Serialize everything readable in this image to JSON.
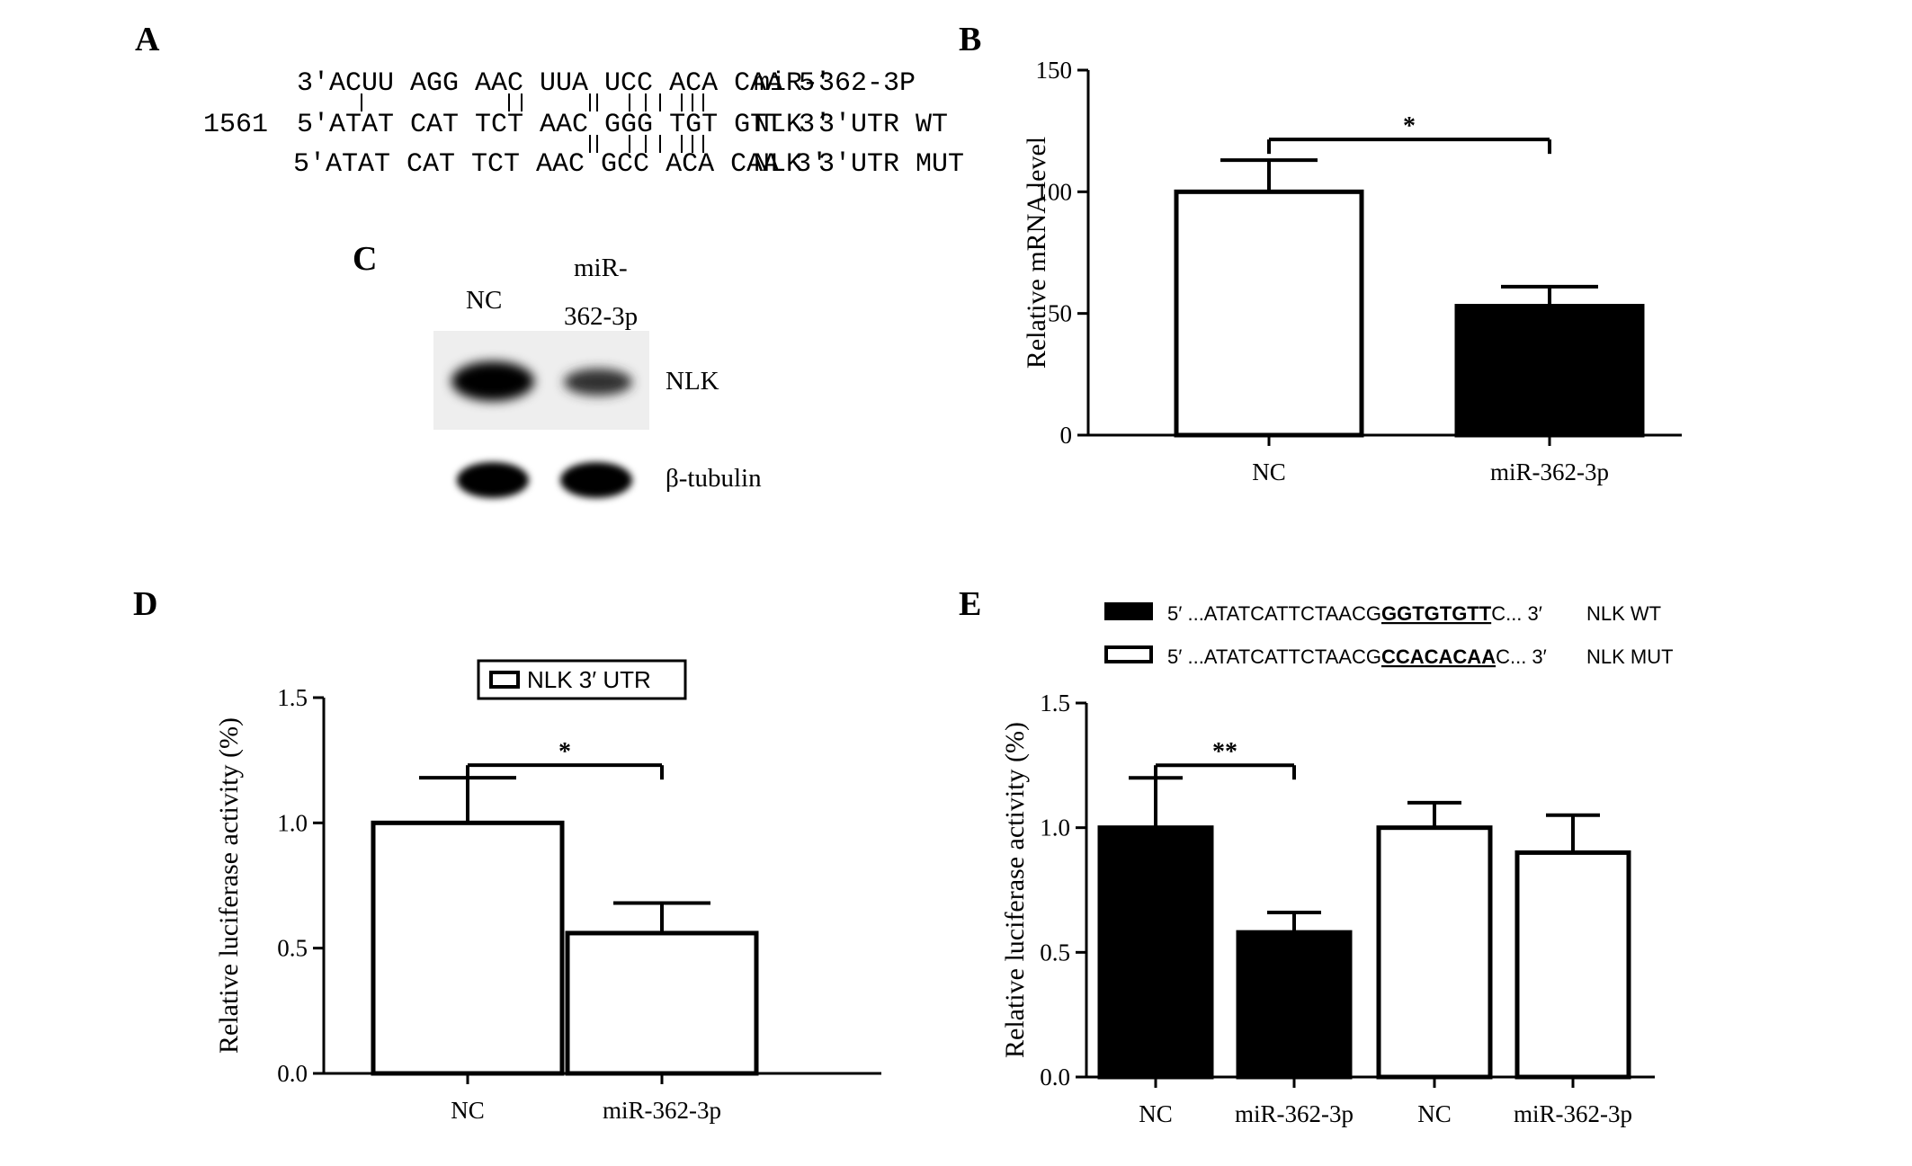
{
  "panels": {
    "A": {
      "letter": "A",
      "position_label": "1561",
      "mir_row": {
        "seq": "3′ACUU AGG AAC UUA UCC ACA CAA 5′",
        "label": "miR-362-3P"
      },
      "wt_row": {
        "seq": "5′ATAT CAT TCT AAC GGG TGT GTT 3′",
        "label": "NLK 3′UTR WT"
      },
      "mut_row": {
        "seq": "5′ATAT CAT TCT AAC GCC ACA CAA 3′",
        "label": "NLK 3′UTR MUT"
      }
    },
    "C": {
      "letter": "C",
      "lane_nc": "NC",
      "lane_mir_line1": "miR-",
      "lane_mir_line2": "362-3p",
      "band_nlk": "NLK",
      "band_tubulin": "β-tubulin"
    },
    "B": {
      "letter": "B"
    },
    "D": {
      "letter": "D"
    },
    "E": {
      "letter": "E"
    }
  },
  "chart_data": [
    {
      "id": "B",
      "type": "bar",
      "categories": [
        "NC",
        "miR-362-3p"
      ],
      "values": [
        100,
        53
      ],
      "errors": [
        13,
        8
      ],
      "fills": [
        "#ffffff",
        "#000000"
      ],
      "ylabel": "Relative mRNA level",
      "ylim": [
        0,
        150
      ],
      "yticks": [
        "0",
        "50",
        "100",
        "150"
      ],
      "sig": [
        {
          "from": 0,
          "to": 1,
          "label": "*"
        }
      ]
    },
    {
      "id": "D",
      "type": "bar",
      "categories": [
        "NC",
        "miR-362-3p"
      ],
      "values": [
        1.0,
        0.56
      ],
      "errors": [
        0.18,
        0.12
      ],
      "fills": [
        "#ffffff",
        "#ffffff"
      ],
      "ylabel": "Relative luciferase activity (%)",
      "ylim": [
        0,
        1.5
      ],
      "yticks": [
        "0.0",
        "0.5",
        "1.0",
        "1.5"
      ],
      "legend": "NLK 3′ UTR",
      "sig": [
        {
          "from": 0,
          "to": 1,
          "label": "*"
        }
      ]
    },
    {
      "id": "E",
      "type": "bar",
      "categories": [
        "NC",
        "miR-362-3p",
        "NC",
        "miR-362-3p"
      ],
      "values": [
        1.0,
        0.58,
        1.0,
        0.9
      ],
      "errors": [
        0.2,
        0.08,
        0.1,
        0.15
      ],
      "fills": [
        "#000000",
        "#000000",
        "#ffffff",
        "#ffffff"
      ],
      "ylabel": "Relative luciferase activity (%)",
      "ylim": [
        0,
        1.5
      ],
      "yticks": [
        "0.0",
        "0.5",
        "1.0",
        "1.5"
      ],
      "legend": [
        {
          "fill": "#000000",
          "prefix": "5′ ...ATATCATTCTAACG",
          "core": "GGTGTGTT",
          "suffix": "C... 3′",
          "name": "NLK WT"
        },
        {
          "fill": "#ffffff",
          "prefix": "5′ ...ATATCATTCTAACG",
          "core": "CCACACAA",
          "suffix": "C... 3′",
          "name": "NLK MUT"
        }
      ],
      "sig": [
        {
          "from": 0,
          "to": 1,
          "label": "**"
        }
      ]
    }
  ]
}
